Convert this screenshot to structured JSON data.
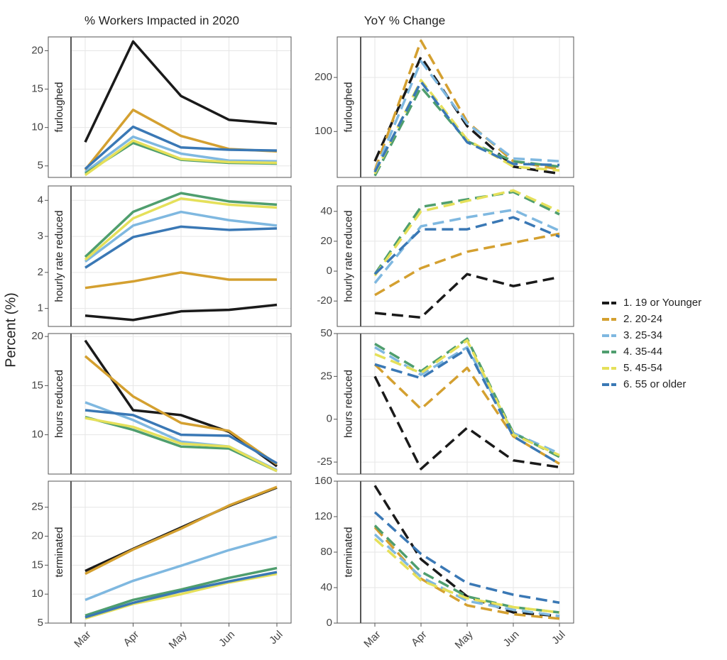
{
  "chart_data": [
    {
      "type": "line",
      "title": "% Workers Impacted in 2020",
      "ylabel": "Percent (%)",
      "strip": "furloughed",
      "line_style": "solid",
      "ylim": [
        3.5,
        21.8
      ],
      "yticks": [
        5,
        10,
        15,
        20
      ],
      "grid": true,
      "series": [
        {
          "name": "1. 19 or Younger",
          "color": "#1a1a1a",
          "values": [
            8.1,
            21.2,
            14.1,
            11.0,
            10.5
          ]
        },
        {
          "name": "2. 20-24",
          "color": "#d4a030",
          "values": [
            4.5,
            12.3,
            8.9,
            7.2,
            6.9
          ]
        },
        {
          "name": "3. 25-34",
          "color": "#7fb8e0",
          "values": [
            4.2,
            8.8,
            6.6,
            5.7,
            5.6
          ]
        },
        {
          "name": "4. 35-44",
          "color": "#4f9e6e",
          "values": [
            4.0,
            8.0,
            5.8,
            5.4,
            5.3
          ]
        },
        {
          "name": "5. 45-54",
          "color": "#e5e05a",
          "values": [
            3.8,
            8.3,
            5.9,
            5.5,
            5.4
          ]
        },
        {
          "name": "6. 55 or older",
          "color": "#3a78b5",
          "values": [
            4.6,
            10.1,
            7.4,
            7.1,
            7.0
          ]
        }
      ]
    },
    {
      "type": "line",
      "title": "YoY % Change",
      "strip": "furloughed",
      "line_style": "dashed",
      "ylim": [
        15,
        275
      ],
      "yticks": [
        100,
        200
      ],
      "grid": true,
      "series": [
        {
          "values": [
            45,
            238,
            110,
            35,
            22
          ]
        },
        {
          "values": [
            28,
            268,
            118,
            45,
            30
          ]
        },
        {
          "values": [
            25,
            230,
            115,
            50,
            45
          ]
        },
        {
          "values": [
            18,
            182,
            82,
            45,
            35
          ]
        },
        {
          "values": [
            22,
            195,
            85,
            35,
            28
          ]
        },
        {
          "values": [
            25,
            192,
            80,
            40,
            38
          ]
        }
      ]
    },
    {
      "type": "line",
      "strip": "hourly rate reduced",
      "line_style": "solid",
      "ylim": [
        0.5,
        4.4
      ],
      "yticks": [
        1,
        2,
        3,
        4
      ],
      "grid": true,
      "series": [
        {
          "values": [
            0.8,
            0.68,
            0.92,
            0.96,
            1.1
          ]
        },
        {
          "values": [
            1.57,
            1.75,
            2.0,
            1.8,
            1.8
          ]
        },
        {
          "values": [
            2.3,
            3.3,
            3.68,
            3.45,
            3.3
          ]
        },
        {
          "values": [
            2.43,
            3.68,
            4.2,
            3.97,
            3.88
          ]
        },
        {
          "values": [
            2.35,
            3.5,
            4.05,
            3.88,
            3.8
          ]
        },
        {
          "values": [
            2.13,
            2.98,
            3.27,
            3.18,
            3.22
          ]
        }
      ]
    },
    {
      "type": "line",
      "strip": "hourly rate reduced",
      "line_style": "dashed",
      "ylim": [
        -37,
        57
      ],
      "yticks": [
        -20,
        0,
        20,
        40
      ],
      "grid": true,
      "series": [
        {
          "values": [
            -28,
            -31,
            -2,
            -10,
            -4
          ]
        },
        {
          "values": [
            -16,
            2,
            13,
            19,
            25
          ]
        },
        {
          "values": [
            -8,
            30,
            36,
            41,
            27
          ]
        },
        {
          "values": [
            -2,
            43,
            48,
            53,
            38
          ]
        },
        {
          "values": [
            -3,
            40,
            47,
            54,
            40
          ]
        },
        {
          "values": [
            -2,
            28,
            28,
            36,
            23
          ]
        }
      ]
    },
    {
      "type": "line",
      "strip": "hours reduced",
      "line_style": "solid",
      "ylim": [
        6,
        20.3
      ],
      "yticks": [
        10,
        15,
        20
      ],
      "grid": true,
      "series": [
        {
          "values": [
            19.6,
            12.5,
            12.0,
            10.3,
            6.8
          ]
        },
        {
          "values": [
            18.0,
            13.9,
            11.2,
            10.4,
            7.0
          ]
        },
        {
          "values": [
            13.3,
            11.5,
            9.3,
            8.8,
            6.4
          ]
        },
        {
          "values": [
            11.8,
            10.5,
            8.8,
            8.6,
            6.3
          ]
        },
        {
          "values": [
            11.7,
            10.8,
            9.1,
            8.8,
            6.3
          ]
        },
        {
          "values": [
            12.5,
            12.0,
            10.0,
            9.9,
            7.1
          ]
        }
      ]
    },
    {
      "type": "line",
      "strip": "hours reduced",
      "line_style": "dashed",
      "ylim": [
        -32,
        50
      ],
      "yticks": [
        -25,
        0,
        25,
        50
      ],
      "grid": true,
      "series": [
        {
          "values": [
            25,
            -29,
            -5,
            -24,
            -28
          ]
        },
        {
          "values": [
            32,
            6,
            30,
            -10,
            -26
          ]
        },
        {
          "values": [
            42,
            26,
            42,
            -8,
            -20
          ]
        },
        {
          "values": [
            44,
            28,
            47,
            -8,
            -22
          ]
        },
        {
          "values": [
            38,
            27,
            46,
            -9,
            -21
          ]
        },
        {
          "values": [
            32,
            24,
            41,
            -10,
            -26
          ]
        }
      ]
    },
    {
      "type": "line",
      "strip": "terminated",
      "line_style": "solid",
      "categories": [
        "Mar",
        "Apr",
        "May",
        "Jun",
        "Jul"
      ],
      "ylim": [
        5,
        29.5
      ],
      "yticks": [
        5,
        10,
        15,
        20,
        25
      ],
      "grid": true,
      "series": [
        {
          "values": [
            14.0,
            17.8,
            21.5,
            25.2,
            28.4
          ]
        },
        {
          "values": [
            13.5,
            17.7,
            21.3,
            25.3,
            28.5
          ]
        },
        {
          "values": [
            9.0,
            12.3,
            14.9,
            17.6,
            19.9
          ]
        },
        {
          "values": [
            6.3,
            9.0,
            10.8,
            12.8,
            14.5
          ]
        },
        {
          "values": [
            5.8,
            8.3,
            10.0,
            12.0,
            13.5
          ]
        },
        {
          "values": [
            6.0,
            8.5,
            10.5,
            12.2,
            13.8
          ]
        }
      ]
    },
    {
      "type": "line",
      "strip": "terminated",
      "line_style": "dashed",
      "categories": [
        "Mar",
        "Apr",
        "May",
        "Jun",
        "Jul"
      ],
      "ylim": [
        0,
        160
      ],
      "yticks": [
        0,
        40,
        80,
        120,
        160
      ],
      "grid": true,
      "series": [
        {
          "values": [
            155,
            72,
            30,
            12,
            8
          ]
        },
        {
          "values": [
            108,
            50,
            20,
            10,
            5
          ]
        },
        {
          "values": [
            100,
            52,
            25,
            15,
            8
          ]
        },
        {
          "values": [
            110,
            58,
            30,
            18,
            12
          ]
        },
        {
          "values": [
            95,
            48,
            28,
            18,
            12
          ]
        },
        {
          "values": [
            125,
            78,
            45,
            32,
            23
          ]
        }
      ]
    }
  ]
}
